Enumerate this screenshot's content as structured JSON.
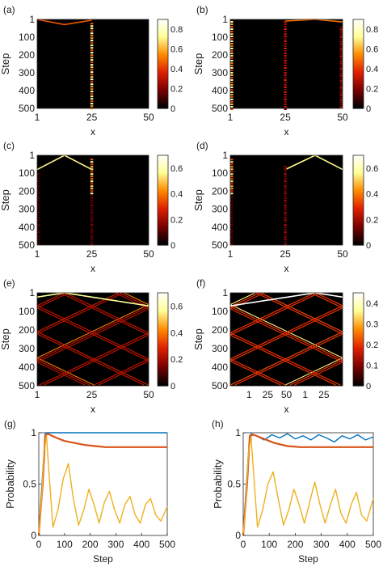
{
  "figure": {
    "panel_labels": [
      "(a)",
      "(b)",
      "(c)",
      "(d)",
      "(e)",
      "(f)",
      "(g)",
      "(h)"
    ],
    "colormap": [
      "#000000",
      "#7a0000",
      "#e02000",
      "#ff8c00",
      "#ffff99",
      "#ffffff"
    ],
    "heatmap_colors": {
      "background": "#000000"
    }
  },
  "chart_data": [
    {
      "panel": "(a)",
      "type": "heatmap",
      "xlabel": "x",
      "ylabel": "Step",
      "x_ticks": [
        "1",
        "25",
        "50"
      ],
      "y_ticks": [
        "1",
        "100",
        "200",
        "300",
        "400",
        "500"
      ],
      "xlim": [
        1,
        50
      ],
      "ylim": [
        1,
        500
      ],
      "colorbar": {
        "ticks": [
          "0",
          "0.2",
          "0.4",
          "0.6",
          "0.8"
        ],
        "range": [
          0,
          0.9
        ]
      },
      "features": [
        {
          "kind": "path",
          "points": [
            [
              1,
              1
            ],
            [
              13,
              30
            ],
            [
              25,
              5
            ]
          ],
          "intensity": 0.45
        },
        {
          "kind": "column",
          "x": 25,
          "y_range": [
            20,
            500
          ],
          "intensity": 0.85
        }
      ]
    },
    {
      "panel": "(b)",
      "type": "heatmap",
      "xlabel": "x",
      "ylabel": "Step",
      "x_ticks": [
        "1",
        "25",
        "50"
      ],
      "y_ticks": [
        "1",
        "100",
        "200",
        "300",
        "400",
        "500"
      ],
      "xlim": [
        1,
        50
      ],
      "ylim": [
        1,
        500
      ],
      "colorbar": {
        "ticks": [
          "0",
          "0.2",
          "0.4",
          "0.6",
          "0.8"
        ],
        "range": [
          0,
          0.9
        ]
      },
      "features": [
        {
          "kind": "path",
          "points": [
            [
              25,
              10
            ],
            [
              38,
              1
            ],
            [
              50,
              15
            ]
          ],
          "intensity": 0.5
        },
        {
          "kind": "column",
          "x": 1,
          "y_range": [
            10,
            500
          ],
          "intensity": 0.8
        },
        {
          "kind": "column",
          "x": 25,
          "y_range": [
            10,
            500
          ],
          "intensity": 0.35
        },
        {
          "kind": "column",
          "x": 50,
          "y_range": [
            40,
            500
          ],
          "intensity": 0.3
        }
      ]
    },
    {
      "panel": "(c)",
      "type": "heatmap",
      "xlabel": "x",
      "ylabel": "Step",
      "x_ticks": [
        "1",
        "25",
        "50"
      ],
      "y_ticks": [
        "1",
        "100",
        "200",
        "300",
        "400",
        "500"
      ],
      "xlim": [
        1,
        50
      ],
      "ylim": [
        1,
        500
      ],
      "colorbar": {
        "ticks": [
          "0",
          "0.2",
          "0.4",
          "0.6"
        ],
        "range": [
          0,
          0.7
        ]
      },
      "features": [
        {
          "kind": "path",
          "points": [
            [
              1,
              80
            ],
            [
              13,
              1
            ],
            [
              25,
              80
            ]
          ],
          "intensity": 0.55
        },
        {
          "kind": "column",
          "x": 25,
          "y_range": [
            20,
            220
          ],
          "intensity": 0.6
        },
        {
          "kind": "column",
          "x": 25,
          "y_range": [
            220,
            500
          ],
          "intensity": 0.15
        },
        {
          "kind": "column",
          "x": 1,
          "y_range": [
            100,
            500
          ],
          "intensity": 0.1
        }
      ]
    },
    {
      "panel": "(d)",
      "type": "heatmap",
      "xlabel": "x",
      "ylabel": "Step",
      "x_ticks": [
        "1",
        "25",
        "50"
      ],
      "y_ticks": [
        "1",
        "100",
        "200",
        "300",
        "400",
        "500"
      ],
      "xlim": [
        1,
        50
      ],
      "ylim": [
        1,
        500
      ],
      "colorbar": {
        "ticks": [
          "0",
          "0.2",
          "0.4",
          "0.6"
        ],
        "range": [
          0,
          0.7
        ]
      },
      "features": [
        {
          "kind": "path",
          "points": [
            [
              25,
              80
            ],
            [
              38,
              1
            ],
            [
              50,
              80
            ]
          ],
          "intensity": 0.55
        },
        {
          "kind": "column",
          "x": 1,
          "y_range": [
            20,
            220
          ],
          "intensity": 0.55
        },
        {
          "kind": "column",
          "x": 25,
          "y_range": [
            60,
            500
          ],
          "intensity": 0.2
        },
        {
          "kind": "column",
          "x": 1,
          "y_range": [
            220,
            500
          ],
          "intensity": 0.12
        }
      ]
    },
    {
      "panel": "(e)",
      "type": "heatmap",
      "xlabel": "x",
      "ylabel": "Step",
      "x_ticks": [
        "1",
        "25",
        "50"
      ],
      "y_ticks": [
        "1",
        "100",
        "200",
        "300",
        "400",
        "500"
      ],
      "xlim": [
        1,
        50
      ],
      "ylim": [
        1,
        500
      ],
      "colorbar": {
        "ticks": [
          "0",
          "0.2",
          "0.4",
          "0.6"
        ],
        "range": [
          0,
          0.7
        ]
      },
      "features": [
        {
          "kind": "bounce",
          "x0": 13,
          "period_steps": 140,
          "intensity": 0.4
        }
      ]
    },
    {
      "panel": "(f)",
      "type": "heatmap",
      "xlabel": "x",
      "ylabel": "Step",
      "x_ticks": [
        "1",
        "25",
        "50",
        "1",
        "25"
      ],
      "y_ticks": [
        "1",
        "100",
        "200",
        "300",
        "400",
        "500"
      ],
      "ylim": [
        1,
        500
      ],
      "colorbar": {
        "ticks": [
          "0",
          "0.1",
          "0.2",
          "0.3",
          "0.4"
        ],
        "range": [
          0,
          0.45
        ]
      },
      "features": [
        {
          "kind": "bounce",
          "x0": 38,
          "period_steps": 140,
          "intensity": 0.35
        }
      ]
    },
    {
      "panel": "(g)",
      "type": "line",
      "xlabel": "Step",
      "ylabel": "Probability",
      "x_ticks": [
        "0",
        "100",
        "200",
        "300",
        "400",
        "500"
      ],
      "y_ticks": [
        "0",
        "0.5",
        "1"
      ],
      "xlim": [
        0,
        500
      ],
      "ylim": [
        0,
        1
      ],
      "series": [
        {
          "color": "#0072bd",
          "x": [
            0,
            20,
            25,
            30,
            40,
            100,
            200,
            300,
            400,
            500
          ],
          "y": [
            0,
            0.8,
            0.99,
            1.0,
            1.0,
            1.0,
            1.0,
            1.0,
            1.0,
            1.0
          ]
        },
        {
          "color": "#d95319",
          "x": [
            0,
            15,
            25,
            35,
            60,
            100,
            140,
            180,
            220,
            260,
            300,
            400,
            500
          ],
          "y": [
            0,
            0.5,
            0.97,
            0.99,
            0.96,
            0.92,
            0.9,
            0.88,
            0.87,
            0.86,
            0.86,
            0.86,
            0.86
          ]
        },
        {
          "color": "#edb120",
          "x": [
            0,
            10,
            20,
            30,
            40,
            55,
            75,
            95,
            115,
            135,
            155,
            175,
            195,
            215,
            235,
            255,
            275,
            295,
            315,
            335,
            355,
            375,
            395,
            415,
            435,
            455,
            475,
            500
          ],
          "y": [
            0,
            0.3,
            0.8,
            0.97,
            0.6,
            0.08,
            0.25,
            0.55,
            0.7,
            0.35,
            0.1,
            0.25,
            0.45,
            0.3,
            0.12,
            0.32,
            0.43,
            0.25,
            0.12,
            0.3,
            0.38,
            0.2,
            0.12,
            0.3,
            0.36,
            0.2,
            0.14,
            0.28
          ]
        }
      ]
    },
    {
      "panel": "(h)",
      "type": "line",
      "xlabel": "Step",
      "ylabel": "Probability",
      "x_ticks": [
        "0",
        "100",
        "200",
        "300",
        "400",
        "500"
      ],
      "y_ticks": [
        "0",
        "0.5",
        "1"
      ],
      "xlim": [
        0,
        500
      ],
      "ylim": [
        0,
        1
      ],
      "series": [
        {
          "color": "#0072bd",
          "x": [
            0,
            20,
            30,
            50,
            80,
            110,
            140,
            170,
            200,
            230,
            260,
            290,
            320,
            350,
            380,
            410,
            440,
            470,
            500
          ],
          "y": [
            0,
            0.8,
            0.99,
            0.97,
            0.93,
            0.98,
            0.95,
            0.99,
            0.94,
            0.97,
            0.93,
            0.98,
            0.95,
            0.91,
            0.97,
            0.94,
            0.98,
            0.93,
            0.96
          ]
        },
        {
          "color": "#d95319",
          "x": [
            0,
            15,
            25,
            40,
            80,
            120,
            170,
            220,
            300,
            400,
            500
          ],
          "y": [
            0,
            0.5,
            0.97,
            0.98,
            0.94,
            0.9,
            0.87,
            0.86,
            0.86,
            0.86,
            0.86
          ]
        },
        {
          "color": "#edb120",
          "x": [
            0,
            10,
            20,
            30,
            40,
            55,
            75,
            95,
            115,
            135,
            155,
            175,
            195,
            215,
            235,
            255,
            275,
            295,
            315,
            335,
            355,
            375,
            395,
            415,
            435,
            455,
            475,
            500
          ],
          "y": [
            0,
            0.3,
            0.8,
            0.96,
            0.6,
            0.08,
            0.25,
            0.5,
            0.62,
            0.35,
            0.1,
            0.25,
            0.45,
            0.3,
            0.12,
            0.32,
            0.52,
            0.3,
            0.12,
            0.3,
            0.45,
            0.22,
            0.12,
            0.3,
            0.42,
            0.2,
            0.14,
            0.36
          ]
        }
      ]
    }
  ]
}
